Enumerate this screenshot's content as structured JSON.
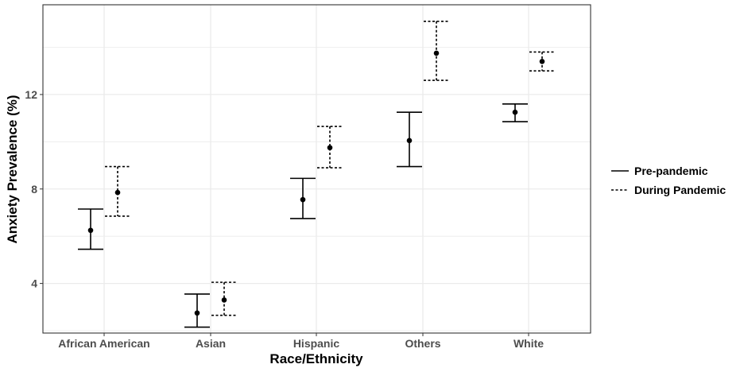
{
  "chart_data": {
    "type": "errorbar",
    "title": "",
    "xlabel": "Race/Ethnicity",
    "ylabel": "Anxiety Prevalence (%)",
    "categories": [
      "African American",
      "Asian",
      "Hispanic",
      "Others",
      "White"
    ],
    "ylim": [
      1.9,
      15.8
    ],
    "yticks": [
      4,
      8,
      12
    ],
    "grid": true,
    "legend_position": "right",
    "series": [
      {
        "name": "Pre-pandemic",
        "linestyle": "solid",
        "values": [
          6.25,
          2.75,
          7.55,
          10.05,
          11.25
        ],
        "lower": [
          5.45,
          2.15,
          6.75,
          8.95,
          10.85
        ],
        "upper": [
          7.15,
          3.55,
          8.45,
          11.25,
          11.6
        ]
      },
      {
        "name": "During Pandemic",
        "linestyle": "dashed",
        "values": [
          7.85,
          3.3,
          9.75,
          13.75,
          13.4
        ],
        "lower": [
          6.85,
          2.65,
          8.9,
          12.6,
          13.0
        ],
        "upper": [
          8.95,
          4.05,
          10.65,
          15.1,
          13.8
        ]
      }
    ],
    "colors": {
      "marks": "#000000",
      "grid": "#ebebeb",
      "panel_border": "#333333",
      "tick_text": "#4d4d4d"
    }
  }
}
